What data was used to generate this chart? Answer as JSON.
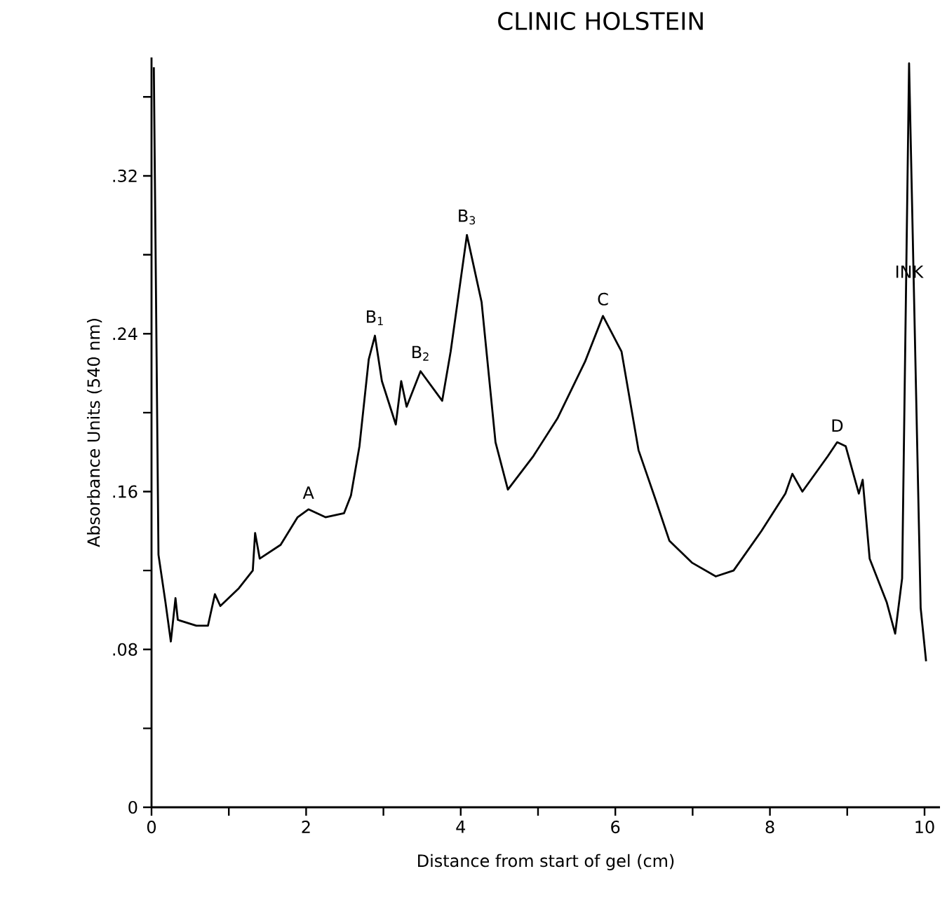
{
  "chart_data": {
    "type": "line",
    "title": "CLINIC HOLSTEIN",
    "xlabel": "Distance from start of gel  (cm)",
    "ylabel": "Absorbance Units (540 nm)",
    "xlim": [
      0,
      10.2
    ],
    "ylim": [
      0,
      0.38
    ],
    "xticks": [
      0,
      {
        "value": 1,
        "label": null
      },
      2,
      {
        "value": 3,
        "label": null
      },
      4,
      {
        "value": 5,
        "label": null
      },
      6,
      {
        "value": 7,
        "label": null
      },
      8,
      {
        "value": 9,
        "label": null
      },
      10
    ],
    "yticks": [
      0,
      {
        "value": 0.04,
        "label": null
      },
      {
        "value": 0.08,
        "label": ".08"
      },
      {
        "value": 0.12,
        "label": null
      },
      {
        "value": 0.16,
        "label": ".16"
      },
      {
        "value": 0.2,
        "label": null
      },
      {
        "value": 0.24,
        "label": ".24"
      },
      {
        "value": 0.28,
        "label": null
      },
      {
        "value": 0.32,
        "label": ".32"
      },
      {
        "value": 0.36,
        "label": null
      }
    ],
    "grid": false,
    "marker": "none",
    "line_style": "solid",
    "series": [
      {
        "color": "#000000",
        "x": [
          0.03,
          0.09,
          0.18,
          0.25,
          0.31,
          0.34,
          0.58,
          0.73,
          0.82,
          0.89,
          1.13,
          1.31,
          1.34,
          1.4,
          1.67,
          1.89,
          2.03,
          2.25,
          2.49,
          2.58,
          2.69,
          2.81,
          2.89,
          2.98,
          3.16,
          3.23,
          3.3,
          3.48,
          3.76,
          3.87,
          4.08,
          4.27,
          4.45,
          4.61,
          4.94,
          5.25,
          5.61,
          5.84,
          6.08,
          6.3,
          6.52,
          6.7,
          6.99,
          7.3,
          7.53,
          7.89,
          8.2,
          8.29,
          8.42,
          8.75,
          8.87,
          8.98,
          9.15,
          9.2,
          9.29,
          9.51,
          9.62,
          9.71,
          9.8,
          9.95,
          10.02
        ],
        "values": [
          0.375,
          0.128,
          0.104,
          0.084,
          0.106,
          0.095,
          0.092,
          0.092,
          0.108,
          0.102,
          0.111,
          0.12,
          0.139,
          0.126,
          0.133,
          0.147,
          0.151,
          0.147,
          0.149,
          0.158,
          0.183,
          0.227,
          0.239,
          0.216,
          0.194,
          0.216,
          0.203,
          0.221,
          0.206,
          0.231,
          0.29,
          0.256,
          0.185,
          0.161,
          0.178,
          0.197,
          0.226,
          0.249,
          0.231,
          0.181,
          0.156,
          0.135,
          0.124,
          0.117,
          0.12,
          0.14,
          0.159,
          0.169,
          0.16,
          0.178,
          0.185,
          0.183,
          0.159,
          0.166,
          0.126,
          0.104,
          0.088,
          0.116,
          0.377,
          0.101,
          0.074
        ]
      }
    ],
    "annotations": [
      {
        "text": "A",
        "x": 2.03,
        "y": 0.151
      },
      {
        "text": "B$_{1}$",
        "x": 2.89,
        "y": 0.239
      },
      {
        "text": "B$_{2}$",
        "x": 3.48,
        "y": 0.221
      },
      {
        "text": "B$_{3}$",
        "x": 4.08,
        "y": 0.29
      },
      {
        "text": "C",
        "x": 5.84,
        "y": 0.249
      },
      {
        "text": "D",
        "x": 8.87,
        "y": 0.185
      },
      {
        "text": "INK",
        "x": 9.8,
        "y": 0.263
      }
    ]
  }
}
